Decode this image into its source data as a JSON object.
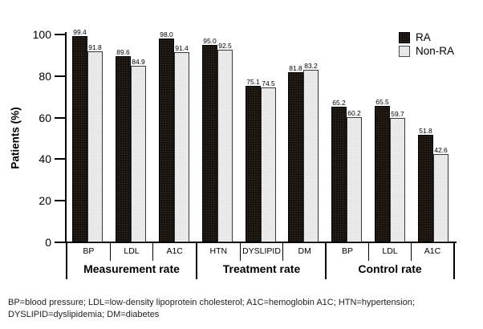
{
  "chart_data": {
    "type": "bar",
    "title": "",
    "ylabel": "Patients (%)",
    "xlabel": "",
    "ylim": [
      0,
      100
    ],
    "yticks": [
      0,
      20,
      40,
      60,
      80,
      100
    ],
    "grid": false,
    "legend_position": "top-right",
    "groups": [
      {
        "label": "Measurement rate",
        "categories": [
          "BP",
          "LDL",
          "A1C"
        ]
      },
      {
        "label": "Treatment rate",
        "categories": [
          "HTN",
          "DYSLIPID",
          "DM"
        ]
      },
      {
        "label": "Control rate",
        "categories": [
          "BP",
          "LDL",
          "A1C"
        ]
      }
    ],
    "series": [
      {
        "name": "RA",
        "color": "#18130f",
        "values": [
          99.4,
          89.6,
          98.0,
          95.0,
          75.1,
          81.8,
          65.2,
          65.5,
          51.8
        ]
      },
      {
        "name": "Non-RA",
        "color": "#e8e8e8",
        "values": [
          91.8,
          84.9,
          91.4,
          92.5,
          74.5,
          83.2,
          60.2,
          59.7,
          42.6
        ]
      }
    ]
  },
  "legend": {
    "items": [
      {
        "label": "RA",
        "color": "#18130f"
      },
      {
        "label": "Non-RA",
        "color": "#e8e8e8"
      }
    ]
  },
  "footnote": {
    "line1": "BP=blood pressure; LDL=low-density lipoprotein cholesterol; A1C=hemoglobin A1C; HTN=hypertension;",
    "line2": "DYSLIPID=dyslipidemia; DM=diabetes"
  }
}
